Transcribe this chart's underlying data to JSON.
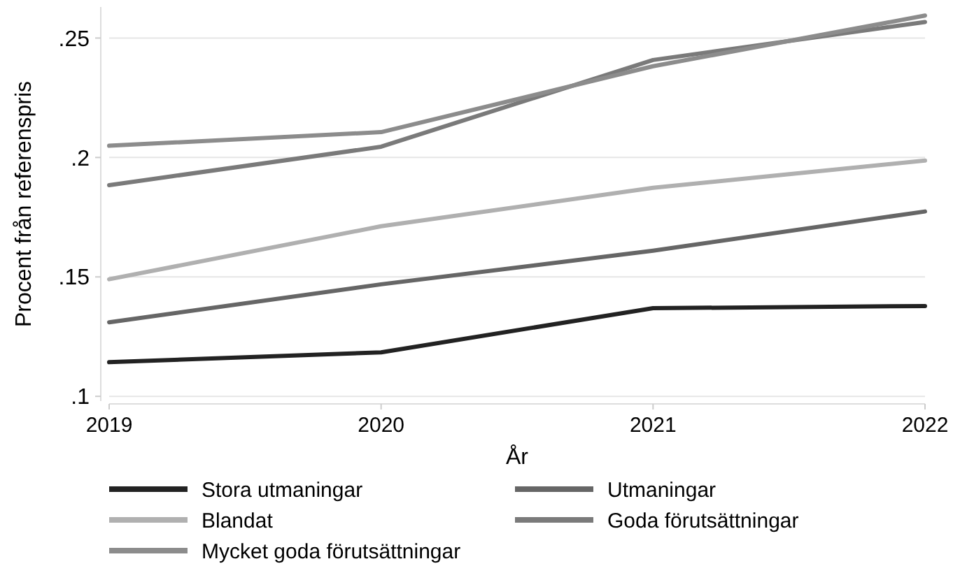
{
  "chart_data": {
    "type": "line",
    "xlabel": "År",
    "ylabel": "Procent från referenspris",
    "x": [
      2019,
      2020,
      2021,
      2022
    ],
    "xlim": [
      2019,
      2022
    ],
    "xticks": [
      2019,
      2020,
      2021,
      2022
    ],
    "ylim": [
      0.098,
      0.263
    ],
    "yticks": [
      {
        "value": 0.1,
        "label": ".1"
      },
      {
        "value": 0.15,
        "label": ".15"
      },
      {
        "value": 0.2,
        "label": ".2"
      },
      {
        "value": 0.25,
        "label": ".25"
      }
    ],
    "grid": "y",
    "legend": "bottom",
    "line_style": "solid",
    "marker": "none",
    "series": [
      {
        "name": "Stora utmaningar",
        "color": "#222222",
        "values": [
          0.1143,
          0.1184,
          0.1369,
          0.1378
        ]
      },
      {
        "name": "Utmaningar",
        "color": "#666666",
        "values": [
          0.131,
          0.1469,
          0.161,
          0.1774
        ]
      },
      {
        "name": "Blandat",
        "color": "#b0b0b0",
        "values": [
          0.149,
          0.1712,
          0.1873,
          0.1987
        ]
      },
      {
        "name": "Goda förutsättningar",
        "color": "#7a7a7a",
        "values": [
          0.1884,
          0.2045,
          0.2408,
          0.2567
        ]
      },
      {
        "name": "Mycket goda förutsättningar",
        "color": "#8c8c8c",
        "values": [
          0.2049,
          0.2106,
          0.2382,
          0.2594
        ]
      }
    ]
  }
}
